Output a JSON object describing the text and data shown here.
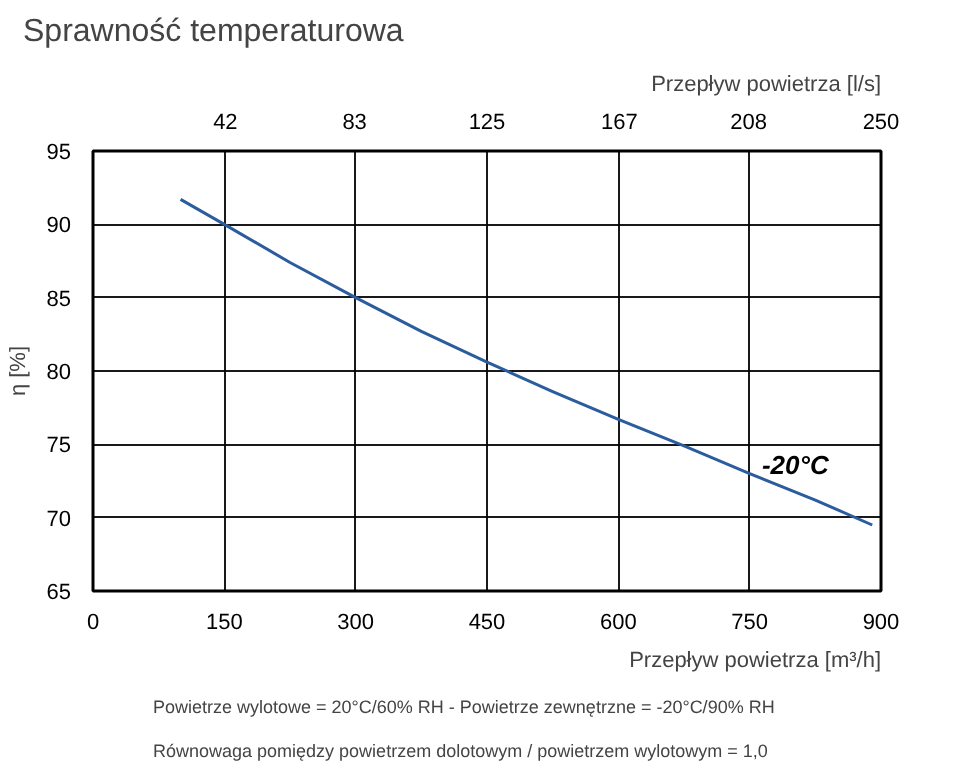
{
  "chart_data": {
    "type": "line",
    "title": "Sprawność temperaturowa",
    "xlabel": "Przepływ powietrza [m³/h]",
    "x2label": "Przepływ powietrza [l/s]",
    "ylabel": "η [%]",
    "annotations": [
      "Powietrze wylotowe = 20°C/60% RH - Powietrze zewnętrzne = -20°C/90% RH",
      "Równowaga pomiędzy powietrzem dolotowym / powietrzem wylotowym = 1,0"
    ],
    "x": [
      100,
      150,
      225,
      300,
      375,
      450,
      525,
      600,
      675,
      750,
      825,
      890
    ],
    "series": [
      {
        "name": "-20°C",
        "color": "#2b5c9e",
        "values": [
          91.7,
          90,
          87.4,
          85,
          82.7,
          80.6,
          78.6,
          76.7,
          74.9,
          73,
          71.2,
          69.5
        ]
      }
    ],
    "xlim": [
      0,
      900
    ],
    "xticks": [
      0,
      150,
      300,
      450,
      600,
      750,
      900
    ],
    "x2lim": [
      0,
      250
    ],
    "x2ticks": [
      42,
      83,
      125,
      167,
      208,
      250
    ],
    "ylim": [
      65,
      95
    ],
    "yticks": [
      65,
      70,
      75,
      80,
      85,
      90,
      95
    ],
    "grid": true,
    "legend": false,
    "marker": "none",
    "line_style": "solid"
  }
}
